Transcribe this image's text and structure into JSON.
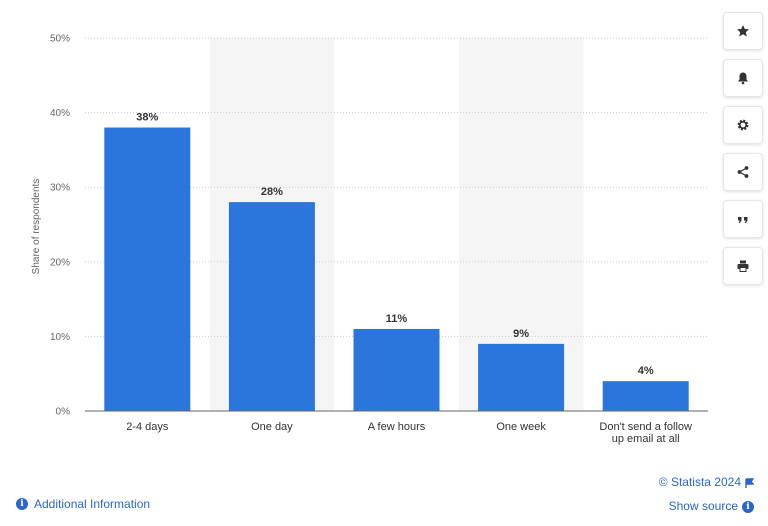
{
  "chart_data": {
    "type": "bar",
    "categories": [
      "2-4 days",
      "One day",
      "A few hours",
      "One week",
      "Don't send a follow up email at all"
    ],
    "category_lines": [
      [
        "2-4 days"
      ],
      [
        "One day"
      ],
      [
        "A few hours"
      ],
      [
        "One week"
      ],
      [
        "Don't send a follow",
        "up email at all"
      ]
    ],
    "values": [
      38,
      28,
      11,
      9,
      4
    ],
    "data_labels": [
      "38%",
      "28%",
      "11%",
      "9%",
      "4%"
    ],
    "ylabel": "Share of respondents",
    "ylim": [
      0,
      50
    ],
    "yticks": [
      0,
      10,
      20,
      30,
      40,
      50
    ],
    "ytick_labels": [
      "0%",
      "10%",
      "20%",
      "30%",
      "40%",
      "50%"
    ],
    "grid": true,
    "bar_color": "#2a76dd",
    "alternate_band_color": "#f5f5f5"
  },
  "toolbar": {
    "buttons": [
      {
        "name": "favorite-button",
        "icon": "star-icon"
      },
      {
        "name": "notification-button",
        "icon": "bell-icon"
      },
      {
        "name": "settings-button",
        "icon": "gear-icon"
      },
      {
        "name": "share-button",
        "icon": "share-icon"
      },
      {
        "name": "cite-button",
        "icon": "quote-icon"
      },
      {
        "name": "print-button",
        "icon": "printer-icon"
      }
    ]
  },
  "footer": {
    "copyright": "© Statista 2024",
    "show_source": "Show source",
    "additional_info": "Additional Information",
    "link_color": "#2a67c6"
  }
}
